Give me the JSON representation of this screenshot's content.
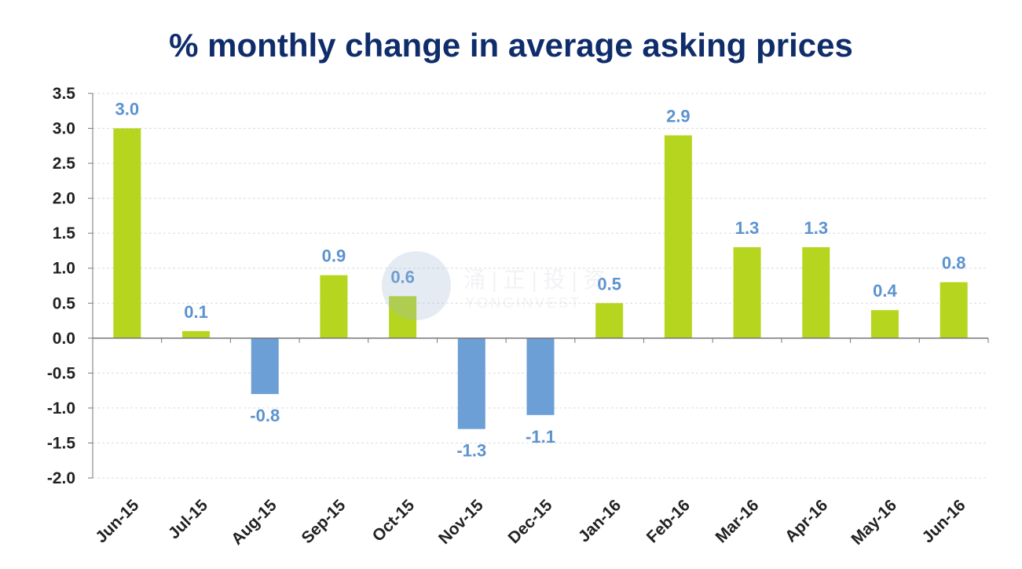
{
  "chart_data": {
    "type": "bar",
    "title": "% monthly change in average asking prices",
    "categories": [
      "Jun-15",
      "Jul-15",
      "Aug-15",
      "Sep-15",
      "Oct-15",
      "Nov-15",
      "Dec-15",
      "Jan-16",
      "Feb-16",
      "Mar-16",
      "Apr-16",
      "May-16",
      "Jun-16"
    ],
    "values": [
      3.0,
      0.1,
      -0.8,
      0.9,
      0.6,
      -1.3,
      -1.1,
      0.5,
      2.9,
      1.3,
      1.3,
      0.4,
      0.8
    ],
    "data_labels": [
      "3.0",
      "0.1",
      "-0.8",
      "0.9",
      "0.6",
      "-1.3",
      "-1.1",
      "0.5",
      "2.9",
      "1.3",
      "1.3",
      "0.4",
      "0.8"
    ],
    "ylim": [
      -2.0,
      3.5
    ],
    "yticks": [
      "-2.0",
      "-1.5",
      "-1.0",
      "-0.5",
      "0.0",
      "0.5",
      "1.0",
      "1.5",
      "2.0",
      "2.5",
      "3.0",
      "3.5"
    ],
    "grid": true,
    "legend": "none",
    "colors": {
      "positive": "#b5d51f",
      "negative": "#6b9fd6",
      "label": "#5b93cf"
    }
  },
  "watermark": {
    "logo_icon": "watermark-logo-icon",
    "text": "涌 | 正 | 投 | 资",
    "subtext": "YONGINVEST"
  }
}
